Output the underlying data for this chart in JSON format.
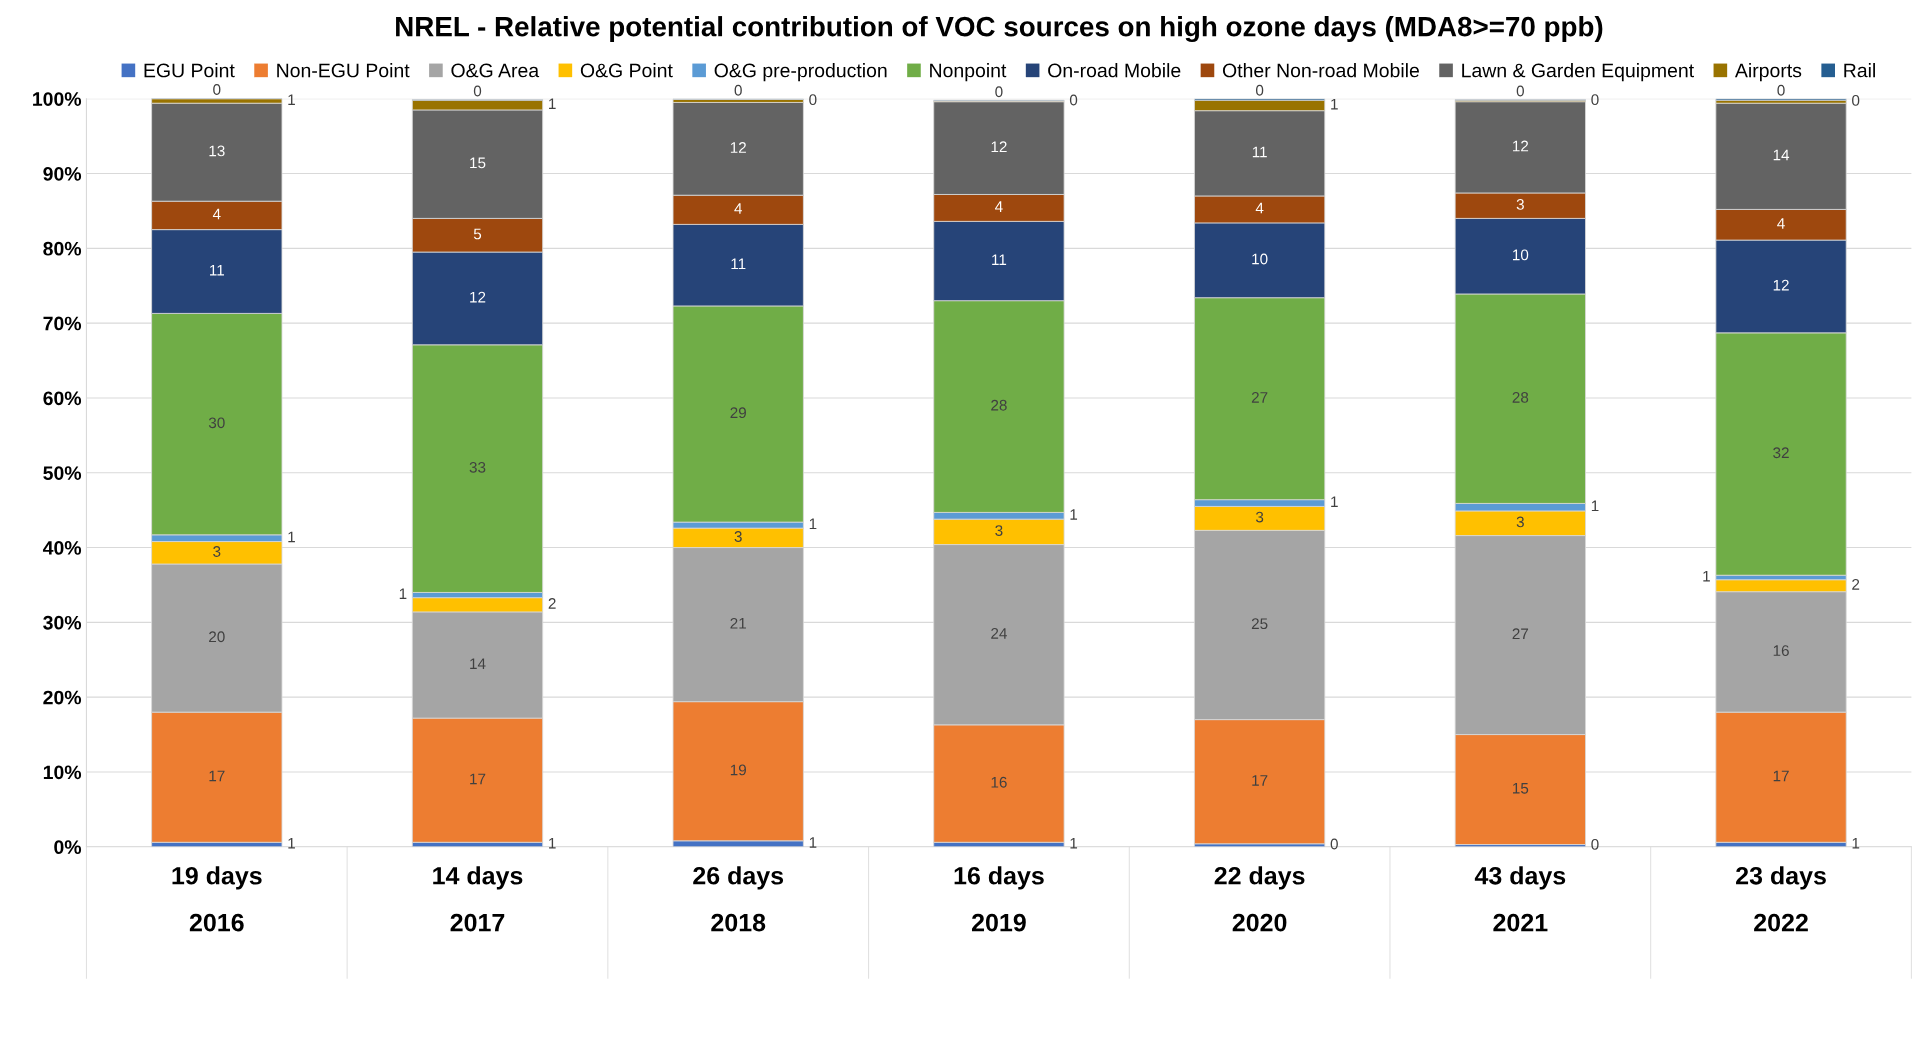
{
  "chart_data": {
    "type": "bar",
    "stacked": true,
    "title": "NREL - Relative potential contribution of VOC sources on high ozone days (MDA8>=70 ppb)",
    "categories": [
      "19 days\n2016",
      "14 days\n2017",
      "26 days\n2018",
      "16 days\n2019",
      "22 days\n2020",
      "43 days\n2021",
      "23 days\n2022"
    ],
    "series": [
      {
        "name": "EGU Point",
        "color": "#4472c4",
        "values": [
          0.6,
          0.6,
          0.8,
          0.6,
          0.4,
          0.3,
          0.6
        ],
        "value_labels": [
          "1",
          "1",
          "1",
          "1",
          "0",
          "0",
          "1"
        ]
      },
      {
        "name": "Non-EGU Point",
        "color": "#ed7d31",
        "values": [
          17.4,
          16.6,
          18.6,
          15.7,
          16.6,
          14.7,
          17.4
        ],
        "value_labels": [
          "17",
          "17",
          "19",
          "16",
          "17",
          "15",
          "17"
        ]
      },
      {
        "name": "O&G Area",
        "color": "#a5a5a5",
        "values": [
          19.8,
          14.2,
          20.6,
          24.1,
          25.3,
          26.6,
          16.1
        ],
        "value_labels": [
          "20",
          "14",
          "21",
          "24",
          "25",
          "27",
          "16"
        ]
      },
      {
        "name": "O&G Point",
        "color": "#ffc000",
        "values": [
          3.0,
          1.9,
          2.6,
          3.4,
          3.2,
          3.3,
          1.6
        ],
        "value_labels": [
          "3",
          "2",
          "3",
          "3",
          "3",
          "3",
          "2"
        ]
      },
      {
        "name": "O&G pre-production",
        "color": "#5b9bd5",
        "values": [
          0.9,
          0.7,
          0.8,
          0.9,
          0.9,
          1.0,
          0.6
        ],
        "value_labels": [
          "1",
          "1",
          "1",
          "1",
          "1",
          "1",
          "1"
        ]
      },
      {
        "name": "Nonpoint",
        "color": "#70ad47",
        "values": [
          29.6,
          33.1,
          28.9,
          28.3,
          27.0,
          28.0,
          32.4
        ],
        "value_labels": [
          "30",
          "33",
          "29",
          "28",
          "27",
          "28",
          "32"
        ]
      },
      {
        "name": "On-road Mobile",
        "color": "#264478",
        "values": [
          11.2,
          12.4,
          10.9,
          10.6,
          10.0,
          10.1,
          12.4
        ],
        "value_labels": [
          "11",
          "12",
          "11",
          "11",
          "10",
          "10",
          "12"
        ]
      },
      {
        "name": "Other Non-road Mobile",
        "color": "#9e480e",
        "values": [
          3.8,
          4.5,
          3.9,
          3.6,
          3.6,
          3.4,
          4.1
        ],
        "value_labels": [
          "4",
          "5",
          "4",
          "4",
          "4",
          "3",
          "4"
        ]
      },
      {
        "name": "Lawn & Garden Equipment",
        "color": "#636363",
        "values": [
          13.1,
          14.5,
          12.4,
          12.4,
          11.4,
          12.2,
          14.2
        ],
        "value_labels": [
          "13",
          "15",
          "12",
          "12",
          "11",
          "12",
          "14"
        ]
      },
      {
        "name": "Airports",
        "color": "#997300",
        "values": [
          0.6,
          1.3,
          0.4,
          0.1,
          1.4,
          0.2,
          0.4
        ],
        "value_labels": [
          "1",
          "1",
          "0",
          "0",
          "1",
          "0",
          "0"
        ]
      },
      {
        "name": "Rail",
        "color": "#255e91",
        "values": [
          0.1,
          0.1,
          0.1,
          0.1,
          0.2,
          0.1,
          0.2
        ],
        "value_labels": [
          "0",
          "0",
          "0",
          "0",
          "0",
          "0",
          "0"
        ]
      }
    ],
    "ylim": [
      0,
      100
    ],
    "yticks": [
      {
        "value": 0,
        "label": "0%"
      },
      {
        "value": 10,
        "label": "10%"
      },
      {
        "value": 20,
        "label": "20%"
      },
      {
        "value": 30,
        "label": "30%"
      },
      {
        "value": 40,
        "label": "40%"
      },
      {
        "value": 50,
        "label": "50%"
      },
      {
        "value": 60,
        "label": "60%"
      },
      {
        "value": 70,
        "label": "70%"
      },
      {
        "value": 80,
        "label": "80%"
      },
      {
        "value": 90,
        "label": "90%"
      },
      {
        "value": 100,
        "label": "100%"
      }
    ],
    "grid": "y",
    "legend": "top"
  }
}
